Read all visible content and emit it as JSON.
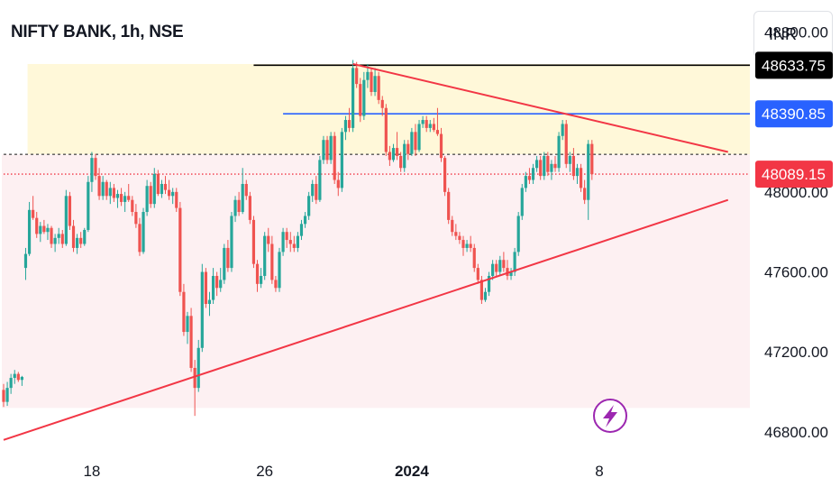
{
  "header": {
    "title": "NIFTY BANK, 1h, NSE",
    "currency": "INR"
  },
  "colors": {
    "up": "#26a69a",
    "down": "#ef5350",
    "resistance": "#000000",
    "level": "#2962ff",
    "trendline": "#f23645",
    "zone_top": "#fff8d9",
    "zone_bottom": "#fdf0f2"
  },
  "icons": {
    "event_marker": "lightning-bolt-icon"
  },
  "chart_data": {
    "type": "candlestick",
    "title": "NIFTY BANK, 1h, NSE",
    "ylim": [
      46750,
      48960
    ],
    "y_ticks": [
      "48800.00",
      "48000.00",
      "47600.00",
      "47200.00",
      "46800.00"
    ],
    "x_ticks": [
      {
        "label": "18",
        "bold": false,
        "index": 24
      },
      {
        "label": "26",
        "bold": false,
        "index": 71
      },
      {
        "label": "2024",
        "bold": true,
        "index": 111
      },
      {
        "label": "8",
        "bold": false,
        "index": 162
      }
    ],
    "price_labels": [
      {
        "value": 48633.75,
        "text": "48633.75",
        "color": "#000000"
      },
      {
        "value": 48390.85,
        "text": "48390.85",
        "color": "#2962ff"
      },
      {
        "value": 48089.15,
        "text": "48089.15",
        "color": "#f23645"
      }
    ],
    "horizontal_lines": [
      {
        "value": 48633.75,
        "from_index": 68,
        "color": "#000000"
      },
      {
        "value": 48390.85,
        "from_index": 76,
        "color": "#2962ff"
      },
      {
        "value": 48089.15,
        "from_index": 0,
        "color": "#f23645",
        "dotted": true
      },
      {
        "value": 48188.0,
        "from_index": 0,
        "color": "#555555",
        "dotted": true
      }
    ],
    "zones": [
      {
        "from": 48188,
        "to": 48640,
        "from_index": 7,
        "color": "#fff8d9"
      },
      {
        "from": 46920,
        "to": 48188,
        "from_index": 0,
        "color": "#fdf0f2"
      }
    ],
    "trendlines": [
      {
        "start": [
          0,
          46760
        ],
        "end": [
          197,
          47960
        ],
        "color": "#f23645"
      },
      {
        "start": [
          95,
          48640
        ],
        "end": [
          197,
          48200
        ],
        "color": "#f23645"
      }
    ],
    "candles": [
      [
        47010,
        47040,
        46925,
        46950
      ],
      [
        46950,
        47050,
        46930,
        47020
      ],
      [
        47020,
        47090,
        46990,
        47070
      ],
      [
        47070,
        47110,
        47040,
        47090
      ],
      [
        47090,
        47100,
        47050,
        47060
      ],
      [
        47060,
        47080,
        47030,
        47075
      ],
      [
        47620,
        47720,
        47560,
        47690
      ],
      [
        47690,
        47950,
        47680,
        47910
      ],
      [
        47910,
        47980,
        47860,
        47870
      ],
      [
        47870,
        47900,
        47770,
        47790
      ],
      [
        47790,
        47850,
        47750,
        47830
      ],
      [
        47830,
        47860,
        47790,
        47800
      ],
      [
        47800,
        47840,
        47760,
        47820
      ],
      [
        47820,
        47830,
        47720,
        47740
      ],
      [
        47740,
        47790,
        47700,
        47770
      ],
      [
        47770,
        47820,
        47740,
        47790
      ],
      [
        47790,
        47810,
        47720,
        47740
      ],
      [
        47740,
        48010,
        47730,
        47980
      ],
      [
        47980,
        48000,
        47810,
        47830
      ],
      [
        47830,
        47860,
        47700,
        47720
      ],
      [
        47720,
        47790,
        47690,
        47770
      ],
      [
        47770,
        47800,
        47720,
        47740
      ],
      [
        47740,
        47820,
        47730,
        47810
      ],
      [
        47810,
        48080,
        47800,
        48050
      ],
      [
        48050,
        48200,
        48000,
        48170
      ],
      [
        48170,
        48190,
        48060,
        48080
      ],
      [
        48080,
        48120,
        47960,
        47980
      ],
      [
        47980,
        48080,
        47960,
        48050
      ],
      [
        48050,
        48060,
        47960,
        47980
      ],
      [
        47980,
        48050,
        47940,
        48020
      ],
      [
        48020,
        48040,
        47950,
        47970
      ],
      [
        47970,
        48010,
        47920,
        47990
      ],
      [
        47990,
        48020,
        47930,
        47950
      ],
      [
        47950,
        48000,
        47900,
        47980
      ],
      [
        47980,
        48040,
        47950,
        47960
      ],
      [
        47960,
        47980,
        47880,
        47900
      ],
      [
        47900,
        47940,
        47820,
        47840
      ],
      [
        47840,
        47870,
        47680,
        47700
      ],
      [
        47700,
        47920,
        47690,
        47900
      ],
      [
        47900,
        48060,
        47880,
        48030
      ],
      [
        48030,
        48050,
        47920,
        47940
      ],
      [
        47940,
        48120,
        47920,
        48090
      ],
      [
        48090,
        48110,
        47980,
        47990
      ],
      [
        47990,
        48060,
        47970,
        48040
      ],
      [
        48040,
        48080,
        47990,
        48010
      ],
      [
        48010,
        48060,
        47960,
        47980
      ],
      [
        47980,
        48020,
        47940,
        48000
      ],
      [
        48000,
        48020,
        47900,
        47920
      ],
      [
        47920,
        47950,
        47480,
        47500
      ],
      [
        47500,
        47540,
        47280,
        47300
      ],
      [
        47300,
        47400,
        47240,
        47380
      ],
      [
        47380,
        47420,
        47100,
        47120
      ],
      [
        47120,
        47160,
        46880,
        47020
      ],
      [
        47020,
        47260,
        47000,
        47220
      ],
      [
        47220,
        47640,
        47200,
        47600
      ],
      [
        47600,
        47620,
        47420,
        47440
      ],
      [
        47440,
        47500,
        47380,
        47460
      ],
      [
        47460,
        47620,
        47440,
        47580
      ],
      [
        47580,
        47600,
        47480,
        47520
      ],
      [
        47520,
        47620,
        47500,
        47560
      ],
      [
        47560,
        47740,
        47540,
        47720
      ],
      [
        47720,
        47760,
        47600,
        47620
      ],
      [
        47620,
        47900,
        47600,
        47880
      ],
      [
        47880,
        47980,
        47850,
        47960
      ],
      [
        47960,
        48000,
        47880,
        47900
      ],
      [
        47900,
        48120,
        47890,
        48040
      ],
      [
        48040,
        48060,
        47960,
        47980
      ],
      [
        47980,
        48000,
        47840,
        47860
      ],
      [
        47860,
        47880,
        47620,
        47640
      ],
      [
        47640,
        47660,
        47500,
        47540
      ],
      [
        47540,
        47620,
        47520,
        47580
      ],
      [
        47580,
        47800,
        47560,
        47780
      ],
      [
        47780,
        47820,
        47700,
        47740
      ],
      [
        47740,
        47780,
        47540,
        47560
      ],
      [
        47560,
        47580,
        47500,
        47520
      ],
      [
        47520,
        47720,
        47500,
        47700
      ],
      [
        47700,
        47820,
        47680,
        47800
      ],
      [
        47800,
        47820,
        47720,
        47760
      ],
      [
        47760,
        47800,
        47700,
        47740
      ],
      [
        47740,
        47780,
        47700,
        47720
      ],
      [
        47720,
        47800,
        47700,
        47780
      ],
      [
        47780,
        47860,
        47760,
        47840
      ],
      [
        47840,
        47900,
        47820,
        47880
      ],
      [
        47880,
        48000,
        47860,
        47980
      ],
      [
        47980,
        48060,
        47950,
        48040
      ],
      [
        48040,
        48080,
        47940,
        47960
      ],
      [
        47960,
        48180,
        47950,
        48160
      ],
      [
        48160,
        48280,
        48140,
        48260
      ],
      [
        48260,
        48280,
        48140,
        48160
      ],
      [
        48160,
        48300,
        48140,
        48280
      ],
      [
        48280,
        48300,
        48040,
        48060
      ],
      [
        48060,
        48100,
        47980,
        48020
      ],
      [
        48020,
        48320,
        48000,
        48300
      ],
      [
        48300,
        48380,
        48260,
        48360
      ],
      [
        48360,
        48420,
        48300,
        48320
      ],
      [
        48320,
        48660,
        48300,
        48620
      ],
      [
        48620,
        48650,
        48520,
        48540
      ],
      [
        48540,
        48570,
        48350,
        48380
      ],
      [
        48380,
        48600,
        48360,
        48560
      ],
      [
        48560,
        48640,
        48520,
        48600
      ],
      [
        48600,
        48620,
        48480,
        48500
      ],
      [
        48500,
        48620,
        48480,
        48580
      ],
      [
        48580,
        48600,
        48440,
        48460
      ],
      [
        48460,
        48480,
        48380,
        48420
      ],
      [
        48420,
        48440,
        48180,
        48200
      ],
      [
        48200,
        48230,
        48130,
        48160
      ],
      [
        48160,
        48240,
        48150,
        48220
      ],
      [
        48220,
        48300,
        48160,
        48180
      ],
      [
        48180,
        48200,
        48100,
        48120
      ],
      [
        48120,
        48260,
        48100,
        48240
      ],
      [
        48240,
        48260,
        48160,
        48190
      ],
      [
        48190,
        48320,
        48180,
        48300
      ],
      [
        48300,
        48340,
        48180,
        48210
      ],
      [
        48210,
        48360,
        48200,
        48340
      ],
      [
        48340,
        48380,
        48320,
        48360
      ],
      [
        48360,
        48380,
        48300,
        48320
      ],
      [
        48320,
        48360,
        48300,
        48340
      ],
      [
        48340,
        48370,
        48300,
        48310
      ],
      [
        48310,
        48420,
        48280,
        48290
      ],
      [
        48290,
        48320,
        48150,
        48170
      ],
      [
        48170,
        48180,
        47980,
        48000
      ],
      [
        48000,
        48020,
        47840,
        47860
      ],
      [
        47860,
        47880,
        47780,
        47800
      ],
      [
        47800,
        47840,
        47760,
        47780
      ],
      [
        47780,
        47800,
        47740,
        47760
      ],
      [
        47760,
        47780,
        47680,
        47720
      ],
      [
        47720,
        47760,
        47700,
        47740
      ],
      [
        47740,
        47780,
        47700,
        47720
      ],
      [
        47720,
        47740,
        47600,
        47620
      ],
      [
        47620,
        47640,
        47540,
        47560
      ],
      [
        47560,
        47580,
        47440,
        47460
      ],
      [
        47460,
        47520,
        47450,
        47500
      ],
      [
        47500,
        47600,
        47480,
        47580
      ],
      [
        47580,
        47660,
        47560,
        47640
      ],
      [
        47640,
        47660,
        47580,
        47600
      ],
      [
        47600,
        47680,
        47580,
        47660
      ],
      [
        47660,
        47700,
        47600,
        47620
      ],
      [
        47620,
        47660,
        47560,
        47580
      ],
      [
        47580,
        47620,
        47560,
        47600
      ],
      [
        47600,
        47720,
        47580,
        47700
      ],
      [
        47700,
        47900,
        47680,
        47880
      ],
      [
        47880,
        48040,
        47860,
        48020
      ],
      [
        48020,
        48100,
        48000,
        48080
      ],
      [
        48080,
        48120,
        48040,
        48060
      ],
      [
        48060,
        48140,
        48040,
        48120
      ],
      [
        48120,
        48180,
        48100,
        48160
      ],
      [
        48160,
        48180,
        48060,
        48080
      ],
      [
        48080,
        48200,
        48060,
        48180
      ],
      [
        48180,
        48200,
        48080,
        48100
      ],
      [
        48100,
        48160,
        48060,
        48140
      ],
      [
        48140,
        48180,
        48100,
        48120
      ],
      [
        48120,
        48300,
        48100,
        48280
      ],
      [
        48280,
        48360,
        48260,
        48340
      ],
      [
        48340,
        48360,
        48120,
        48140
      ],
      [
        48140,
        48200,
        48100,
        48180
      ],
      [
        48180,
        48220,
        48060,
        48080
      ],
      [
        48080,
        48140,
        48040,
        48120
      ],
      [
        48120,
        48140,
        48000,
        48020
      ],
      [
        48020,
        48060,
        47940,
        47960
      ],
      [
        47960,
        48260,
        47860,
        48240
      ],
      [
        48240,
        48260,
        48060,
        48089
      ]
    ]
  }
}
